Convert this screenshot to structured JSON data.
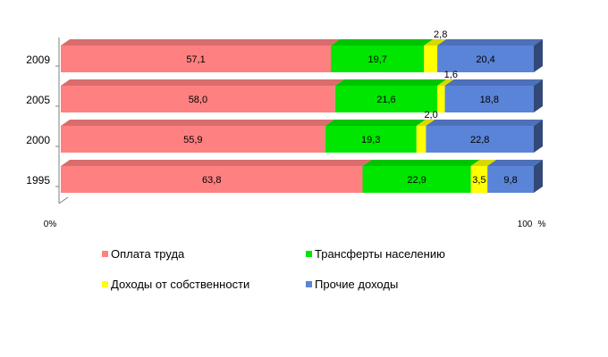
{
  "chart_data": {
    "type": "bar",
    "orientation": "horizontal",
    "stacked": true,
    "percent_stacked": true,
    "three_d": true,
    "title": "",
    "xlabel": "",
    "ylabel": "",
    "x_tick_labels": [
      "0%",
      "100"
    ],
    "x_unit_label": "%",
    "xlim": [
      0,
      100
    ],
    "categories": [
      "2009",
      "2005",
      "2000",
      "1995"
    ],
    "series": [
      {
        "name": "Оплата труда",
        "color": "#ff8080",
        "values": [
          57.1,
          58.0,
          55.9,
          63.8
        ],
        "labels": [
          "57,1",
          "58,0",
          "55,9",
          "63,8"
        ]
      },
      {
        "name": "Трансферты населению",
        "color": "#00e600",
        "values": [
          19.7,
          21.6,
          19.3,
          22.9
        ],
        "labels": [
          "19,7",
          "21,6",
          "19,3",
          "22,9"
        ]
      },
      {
        "name": "Доходы от собственности",
        "color": "#ffff00",
        "values": [
          2.8,
          1.6,
          2.0,
          3.5
        ],
        "labels": [
          "2,8",
          "1,6",
          "2,0",
          "3,5"
        ]
      },
      {
        "name": "Прочие доходы",
        "color": "#5a84d8",
        "values": [
          20.4,
          18.8,
          22.8,
          9.8
        ],
        "labels": [
          "20,4",
          "18,8",
          "22,8",
          "9,8"
        ]
      }
    ],
    "legend_position": "bottom",
    "grid": false
  }
}
